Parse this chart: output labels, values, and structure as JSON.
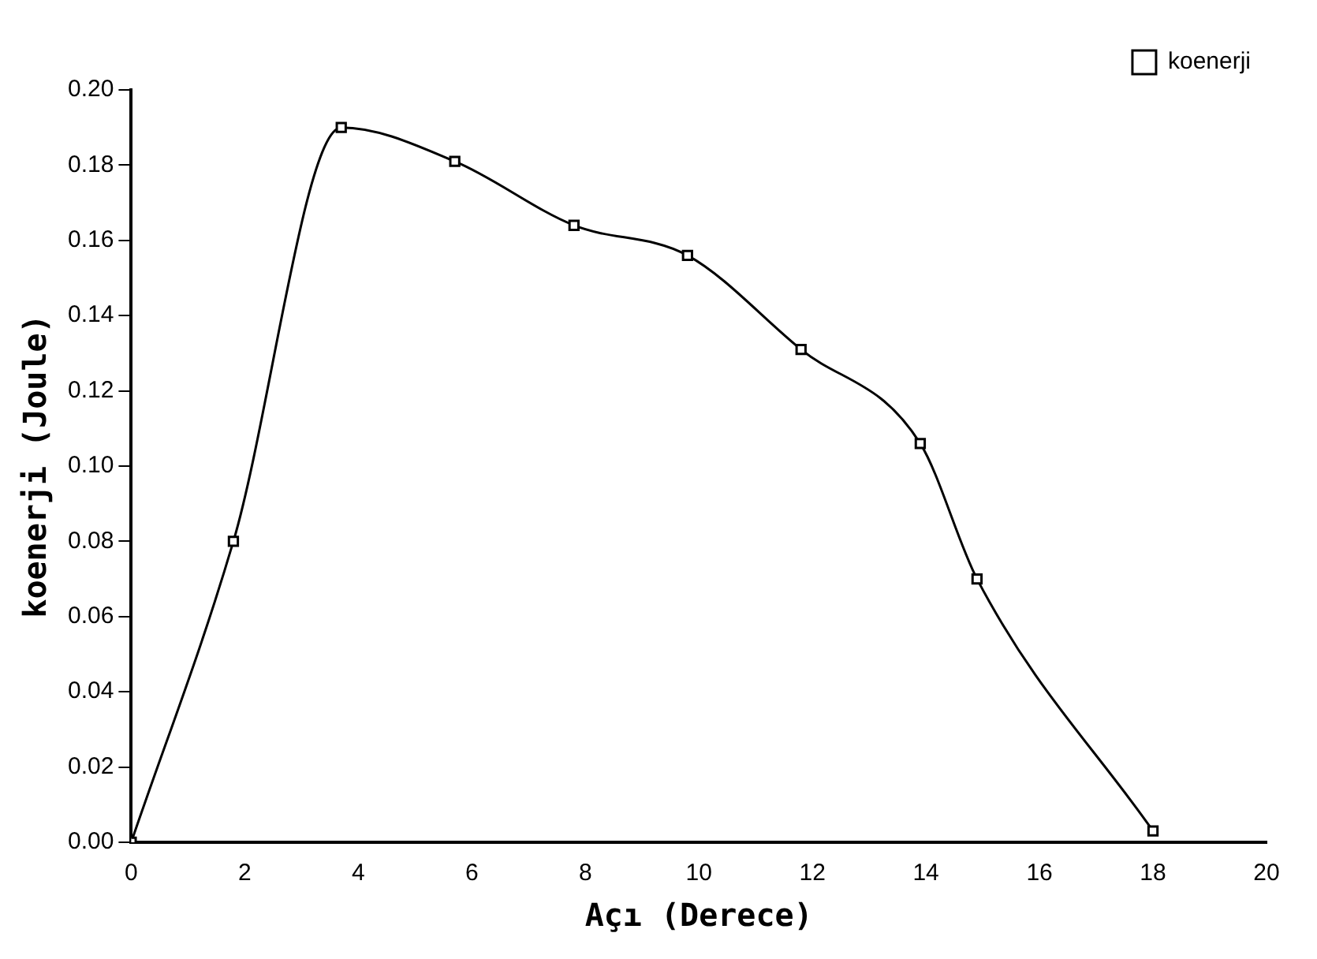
{
  "chart_data": {
    "type": "line",
    "xlabel": "Açı (Derece)",
    "ylabel": "koenerji (Joule)",
    "series": [
      {
        "name": "koenerji",
        "color": "#000000",
        "x": [
          0,
          1.8,
          3.7,
          5.7,
          7.8,
          9.8,
          11.8,
          13.9,
          14.9,
          18
        ],
        "values": [
          0,
          0.08,
          0.19,
          0.181,
          0.164,
          0.156,
          0.131,
          0.106,
          0.07,
          0.003
        ]
      }
    ],
    "xlim": [
      0,
      20
    ],
    "xticks": [
      0,
      2,
      4,
      6,
      8,
      10,
      12,
      14,
      16,
      18,
      20
    ],
    "ylim": [
      0,
      0.2
    ],
    "yticks": [
      {
        "value": 0,
        "label": "0.00"
      },
      {
        "value": 0.02,
        "label": "0.02"
      },
      {
        "value": 0.04,
        "label": "0.04"
      },
      {
        "value": 0.06,
        "label": "0.06"
      },
      {
        "value": 0.08,
        "label": "0.08"
      },
      {
        "value": 0.1,
        "label": "0.10"
      },
      {
        "value": 0.12,
        "label": "0.12"
      },
      {
        "value": 0.14,
        "label": "0.14"
      },
      {
        "value": 0.16,
        "label": "0.16"
      },
      {
        "value": 0.18,
        "label": "0.18"
      },
      {
        "value": 0.2,
        "label": "0.20"
      }
    ],
    "grid": false,
    "legend": "top right",
    "marker": "square",
    "line_style": "solid"
  }
}
